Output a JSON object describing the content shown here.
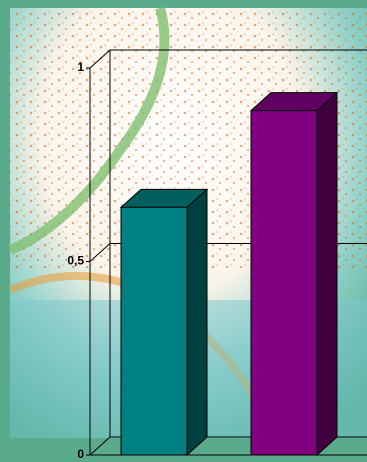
{
  "chart_data": {
    "type": "bar3d",
    "values": [
      0.64,
      0.89
    ],
    "colors": [
      "#008080",
      "#800080"
    ],
    "ylim": [
      0,
      1
    ],
    "yticks": [
      0,
      {
        "value": 0.5,
        "label": "0,5"
      },
      1
    ],
    "grid": true
  }
}
